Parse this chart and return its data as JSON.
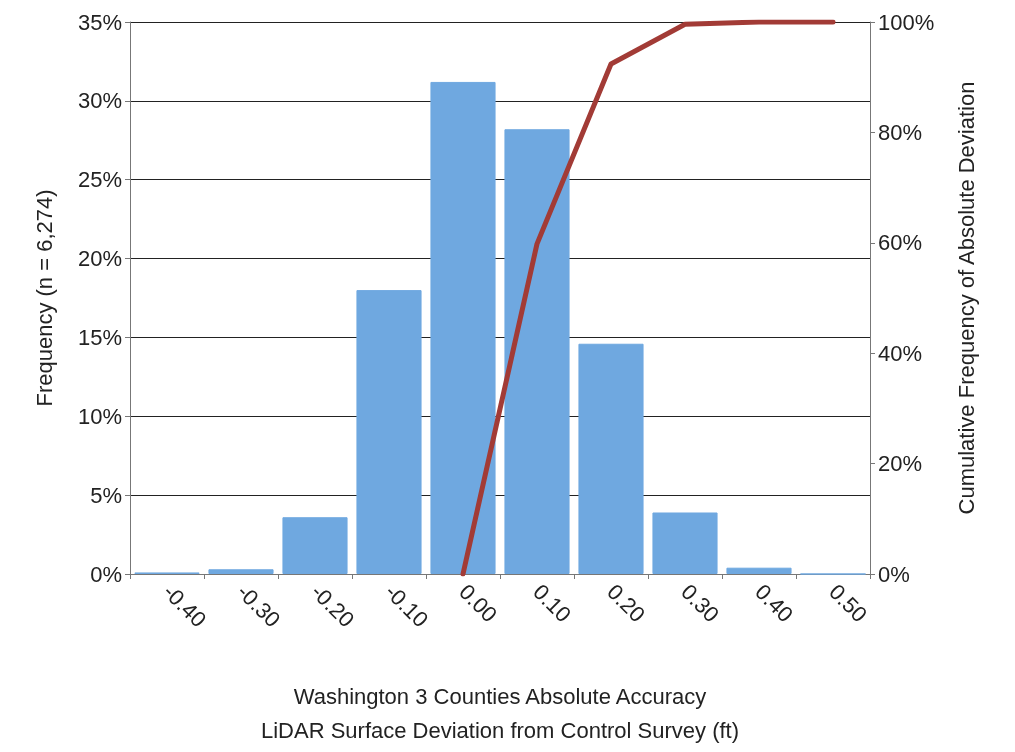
{
  "chart_data": {
    "type": "bar",
    "xlabel": "Washington 3 Counties Absolute Accuracy\nLiDAR Surface Deviation from Control Survey (ft)",
    "ylabel": "Frequency (n = 6,274)",
    "y2label": "Cumulative Frequency of Absolute Deviation",
    "categories": [
      "-0.40",
      "-0.30",
      "-0.20",
      "-0.10",
      "0.00",
      "0.10",
      "0.20",
      "0.30",
      "0.40",
      "0.50"
    ],
    "series": [
      {
        "color": "#6fa8e0",
        "values": [
          0.1,
          0.3,
          3.6,
          18.0,
          31.2,
          28.2,
          14.6,
          3.9,
          0.4,
          0
        ]
      },
      {
        "type": "line",
        "axis": "y2",
        "color": "#a23b36",
        "values": [
          null,
          null,
          null,
          null,
          0,
          59.8,
          92.4,
          99.6,
          100,
          100
        ]
      }
    ],
    "ylim": [
      0,
      35
    ],
    "yticks": [
      {
        "value": 0,
        "label": "0%"
      },
      {
        "value": 5,
        "label": "5%"
      },
      {
        "value": 10,
        "label": "10%"
      },
      {
        "value": 15,
        "label": "15%"
      },
      {
        "value": 20,
        "label": "20%"
      },
      {
        "value": 25,
        "label": "25%"
      },
      {
        "value": 30,
        "label": "30%"
      },
      {
        "value": 35,
        "label": "35%"
      }
    ],
    "y2lim": [
      0,
      100
    ],
    "y2ticks": [
      {
        "value": 0,
        "label": "0%"
      },
      {
        "value": 20,
        "label": "20%"
      },
      {
        "value": 40,
        "label": "40%"
      },
      {
        "value": 60,
        "label": "60%"
      },
      {
        "value": 80,
        "label": "80%"
      },
      {
        "value": 100,
        "label": "100%"
      }
    ],
    "grid": "y",
    "marker": "none"
  }
}
